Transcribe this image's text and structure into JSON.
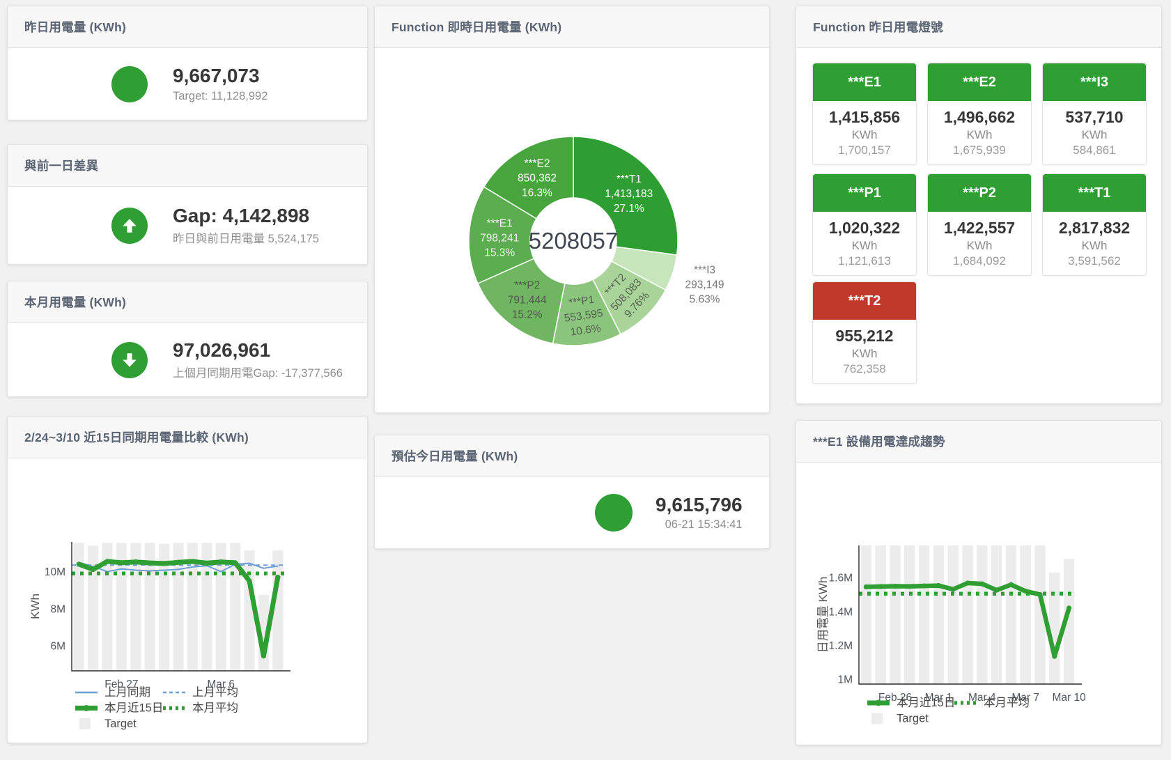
{
  "page": {
    "edge_strip_color": "#2a7a33",
    "accent_green": "#2f9e33",
    "accent_red": "#c0392b",
    "bar_gray": "#ececec",
    "line_blue": "#6d9ed4"
  },
  "cards": {
    "yesterday": {
      "title": "昨日用電量 (KWh)",
      "value": "9,667,073",
      "subtitle": "Target: 11,128,992",
      "status_color": "#2f9e33"
    },
    "gap": {
      "title": "與前一日差異",
      "value": "Gap: 4,142,898",
      "subtitle": "昨日與前日用電量 5,524,175",
      "status_color": "#c0392b",
      "icon": "arrow-up-icon"
    },
    "month": {
      "title": "本月用電量 (KWh)",
      "value": "97,026,961",
      "subtitle": "上個月同期用電Gap: -17,377,566",
      "status_color": "#2f9e33",
      "icon": "arrow-down-icon"
    },
    "estimate": {
      "title": "預估今日用電量 (KWh)",
      "value": "9,615,796",
      "subtitle": "06-21 15:34:41",
      "status_color": "#2f9e33"
    },
    "compare_chart": {
      "title": "2/24~3/10 近15日同期用電量比較 (KWh)"
    },
    "donut_chart": {
      "title": "Function 即時日用電量 (KWh)"
    },
    "lamp": {
      "title": "Function 昨日用電燈號",
      "unit": "KWh",
      "tiles": [
        {
          "name": "***E1",
          "value": "1,415,856",
          "target": "1,700,157",
          "status": "green"
        },
        {
          "name": "***E2",
          "value": "1,496,662",
          "target": "1,675,939",
          "status": "green"
        },
        {
          "name": "***I3",
          "value": "537,710",
          "target": "584,861",
          "status": "green"
        },
        {
          "name": "***P1",
          "value": "1,020,322",
          "target": "1,121,613",
          "status": "green"
        },
        {
          "name": "***P2",
          "value": "1,422,557",
          "target": "1,684,092",
          "status": "green"
        },
        {
          "name": "***T1",
          "value": "2,817,832",
          "target": "3,591,562",
          "status": "green"
        },
        {
          "name": "***T2",
          "value": "955,212",
          "target": "762,358",
          "status": "red"
        }
      ],
      "status_colors": {
        "green": "#2f9e33",
        "red": "#c0392b"
      }
    },
    "trend_chart": {
      "title": "***E1 設備用電達成趨勢"
    }
  },
  "chart_data": [
    {
      "id": "donut",
      "type": "pie",
      "title": "Function 即時日用電量 (KWh)",
      "center_total": "5208057",
      "slices": [
        {
          "name": "***T1",
          "value": 1413183,
          "pct": "27.1%",
          "color": "#2f9e32",
          "label_color": "#ffffff"
        },
        {
          "name": "***I3",
          "value": 293149,
          "pct": "5.63%",
          "color": "#c6e5ba",
          "label_color": "#757575",
          "outside": true
        },
        {
          "name": "***T2",
          "value": 508083,
          "pct": "9.76%",
          "color": "#a8d49a",
          "label_color": "#55614f",
          "rotate": -47
        },
        {
          "name": "***P1",
          "value": 553595,
          "pct": "10.6%",
          "color": "#8bc47d",
          "label_color": "#55614f",
          "rotate": -8
        },
        {
          "name": "***P2",
          "value": 791444,
          "pct": "15.2%",
          "color": "#70b562",
          "label_color": "#4f5b4a"
        },
        {
          "name": "***E1",
          "value": 798241,
          "pct": "15.3%",
          "color": "#5cac50",
          "label_color": "#eef4ea"
        },
        {
          "name": "***E2",
          "value": 850362,
          "pct": "16.3%",
          "color": "#48a53e",
          "label_color": "#ffffff"
        }
      ]
    },
    {
      "id": "compare",
      "type": "line",
      "title": "2/24~3/10 近15日同期用電量比較 (KWh)",
      "ylabel": "KWh",
      "unit": "M KWh",
      "ylim": [
        4.65,
        11.6
      ],
      "yticks": [
        {
          "v": 6,
          "label": "6M"
        },
        {
          "v": 8,
          "label": "8M"
        },
        {
          "v": 10,
          "label": "10M"
        }
      ],
      "categories": [
        "2/24",
        "2/25",
        "2/26",
        "2/27",
        "2/28",
        "3/1",
        "3/2",
        "3/3",
        "3/4",
        "3/5",
        "3/6",
        "3/7",
        "3/8",
        "3/9",
        "3/10"
      ],
      "xticks": [
        {
          "i": 3,
          "label": "Feb 27"
        },
        {
          "i": 10,
          "label": "Mar 6"
        }
      ],
      "target_bars": [
        11.55,
        11.4,
        11.55,
        11.55,
        11.55,
        11.55,
        11.5,
        11.55,
        11.55,
        11.55,
        11.55,
        11.55,
        11.15,
        8.75,
        11.15
      ],
      "series": [
        {
          "name": "上月同期",
          "style": "line",
          "color": "#6d9ed4",
          "width": 2,
          "values": [
            10.5,
            10.28,
            10.0,
            10.15,
            10.08,
            10.04,
            10.08,
            10.12,
            10.25,
            10.32,
            10.0,
            10.4,
            10.45,
            10.18,
            10.3
          ]
        },
        {
          "name": "上月平均",
          "style": "dash",
          "color": "#6d9ed4",
          "width": 2,
          "constant": 10.35
        },
        {
          "name": "本月近15日",
          "style": "thick",
          "color": "#2f9e33",
          "width": 7,
          "markers": true,
          "values": [
            10.4,
            10.12,
            10.55,
            10.48,
            10.52,
            10.47,
            10.44,
            10.5,
            10.55,
            10.46,
            10.52,
            10.48,
            9.5,
            5.45,
            9.7
          ]
        },
        {
          "name": "本月平均",
          "style": "dots",
          "color": "#2f9e33",
          "width": 5.5,
          "constant": 9.9
        }
      ],
      "target_name": "Target",
      "legend_rows": [
        [
          {
            "sw": "line",
            "color": "#6d9ed4",
            "label": "上月同期"
          },
          {
            "sw": "dash",
            "color": "#6d9ed4",
            "label": "上月平均"
          }
        ],
        [
          {
            "sw": "thick",
            "color": "#2f9e33",
            "label": "本月近15日"
          },
          {
            "sw": "dots",
            "color": "#2f9e33",
            "label": "本月平均"
          }
        ],
        [
          {
            "sw": "box",
            "color": "#ececec",
            "label": "Target"
          }
        ]
      ]
    },
    {
      "id": "trend",
      "type": "line",
      "title": "***E1 設備用電達成趨勢",
      "ylabel": "日用電量 KWh",
      "unit": "M KWh",
      "ylim": [
        0.971,
        1.79
      ],
      "yticks": [
        {
          "v": 1,
          "label": "1M"
        },
        {
          "v": 1.2,
          "label": "1.2M"
        },
        {
          "v": 1.4,
          "label": "1.4M"
        },
        {
          "v": 1.6,
          "label": "1.6M"
        }
      ],
      "categories": [
        "2/24",
        "2/25",
        "2/26",
        "2/27",
        "2/28",
        "3/1",
        "3/2",
        "3/3",
        "3/4",
        "3/5",
        "3/6",
        "3/7",
        "3/8",
        "3/9",
        "3/10"
      ],
      "xticks": [
        {
          "i": 2,
          "label": "Feb 26"
        },
        {
          "i": 5,
          "label": "Mar 1"
        },
        {
          "i": 8,
          "label": "Mar 4"
        },
        {
          "i": 11,
          "label": "Mar 7"
        },
        {
          "i": 14,
          "label": "Mar 10"
        }
      ],
      "target_bars": [
        1.79,
        1.79,
        1.79,
        1.79,
        1.79,
        1.79,
        1.79,
        1.79,
        1.79,
        1.79,
        1.79,
        1.79,
        1.79,
        1.63,
        1.71
      ],
      "series": [
        {
          "name": "本月近15日",
          "style": "thick",
          "color": "#2f9e33",
          "width": 6.5,
          "markers": true,
          "values": [
            1.545,
            1.547,
            1.549,
            1.548,
            1.551,
            1.553,
            1.531,
            1.568,
            1.563,
            1.526,
            1.558,
            1.52,
            1.5,
            1.135,
            1.42
          ]
        },
        {
          "name": "本月平均",
          "style": "dots",
          "color": "#2f9e33",
          "width": 5.5,
          "constant": 1.505
        }
      ],
      "target_name": "Target",
      "legend_rows": [
        [
          {
            "sw": "thick",
            "color": "#2f9e33",
            "label": "本月近15日"
          },
          {
            "sw": "dots",
            "color": "#2f9e33",
            "label": "本月平均"
          }
        ],
        [
          {
            "sw": "box",
            "color": "#ececec",
            "label": "Target"
          }
        ]
      ]
    }
  ]
}
